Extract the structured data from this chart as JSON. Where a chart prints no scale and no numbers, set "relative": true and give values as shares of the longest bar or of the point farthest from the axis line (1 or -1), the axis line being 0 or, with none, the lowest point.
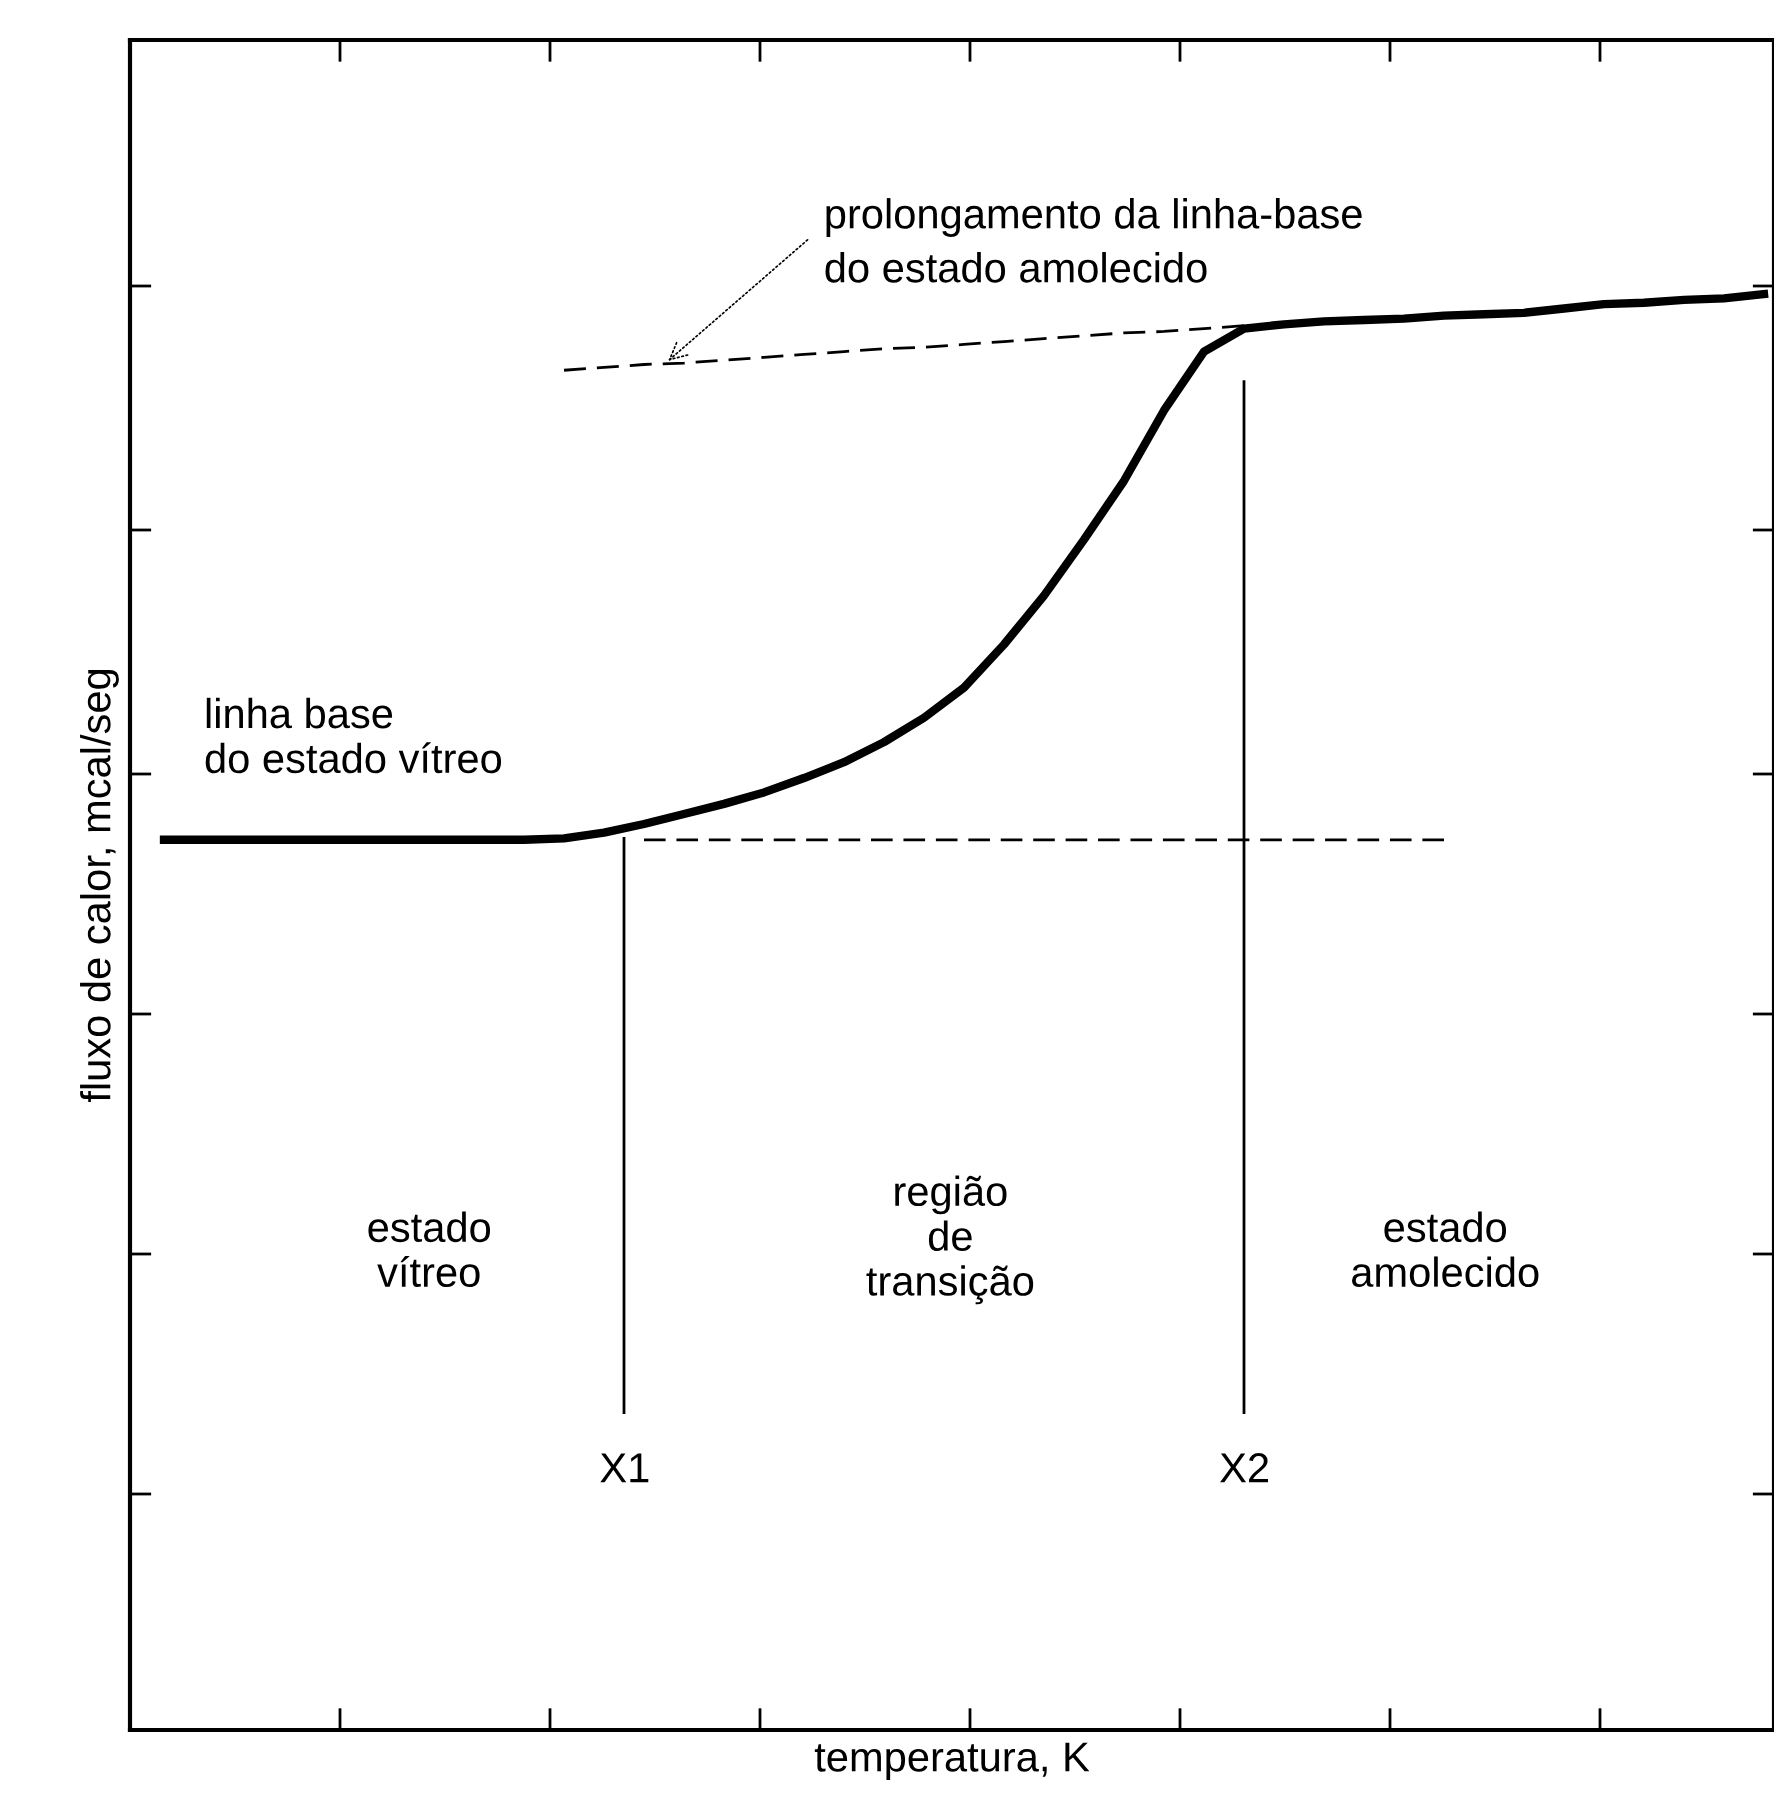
{
  "chart_data": {
    "type": "line",
    "relative": true,
    "xlabel": "temperatura, K",
    "ylabel": "fluxo de calor, mcal/seg",
    "categories": [
      null,
      null,
      null,
      null,
      null,
      null,
      null,
      null,
      null,
      null,
      null,
      null,
      null,
      null,
      null,
      null,
      null,
      null,
      null,
      null,
      null,
      null,
      null,
      null,
      null,
      null,
      null,
      null,
      null,
      null,
      null,
      null,
      null,
      null,
      null,
      null,
      null,
      null,
      null,
      null,
      null
    ],
    "series": [
      {
        "color": "#000000",
        "line_style": "solid",
        "values": [
          0.62,
          0.62,
          0.62,
          0.62,
          0.62,
          0.62,
          0.62,
          0.62,
          0.62,
          0.62,
          0.621,
          0.625,
          0.631,
          0.638,
          0.645,
          0.653,
          0.663,
          0.674,
          0.688,
          0.705,
          0.726,
          0.756,
          0.79,
          0.829,
          0.87,
          0.919,
          0.96,
          0.976,
          0.979,
          0.981,
          0.982,
          0.983,
          0.985,
          0.986,
          0.987,
          0.99,
          0.993,
          0.994,
          0.996,
          0.997,
          1.0
        ]
      },
      {
        "color": "#000000",
        "line_style": "dashed",
        "values": [
          null,
          null,
          null,
          null,
          null,
          null,
          null,
          null,
          null,
          null,
          null,
          null,
          0.62,
          0.62,
          0.62,
          0.62,
          0.62,
          0.62,
          0.62,
          0.62,
          0.62,
          0.62,
          0.62,
          0.62,
          0.62,
          0.62,
          0.62,
          0.62,
          0.62,
          0.62,
          0.62,
          0.62,
          0.62,
          null,
          null,
          null,
          null,
          null,
          null,
          null,
          null
        ]
      },
      {
        "color": "#000000",
        "line_style": "dashed",
        "values": [
          null,
          null,
          null,
          null,
          null,
          null,
          null,
          null,
          null,
          null,
          0.947,
          0.949,
          0.951,
          0.952,
          0.954,
          0.956,
          0.958,
          0.96,
          0.962,
          0.963,
          0.965,
          0.967,
          0.969,
          0.971,
          0.973,
          0.974,
          0.976,
          0.978,
          null,
          null,
          null,
          null,
          null,
          null,
          null,
          null,
          null,
          null,
          null,
          null,
          null
        ]
      }
    ],
    "annotations": [
      "prolongamento da linha-base\ndo estado amolecido",
      "linha base\ndo estado vítreo",
      "estado\nvítreo",
      "região\nde\ntransição",
      "estado\namolecido",
      "X1",
      "X2"
    ]
  }
}
